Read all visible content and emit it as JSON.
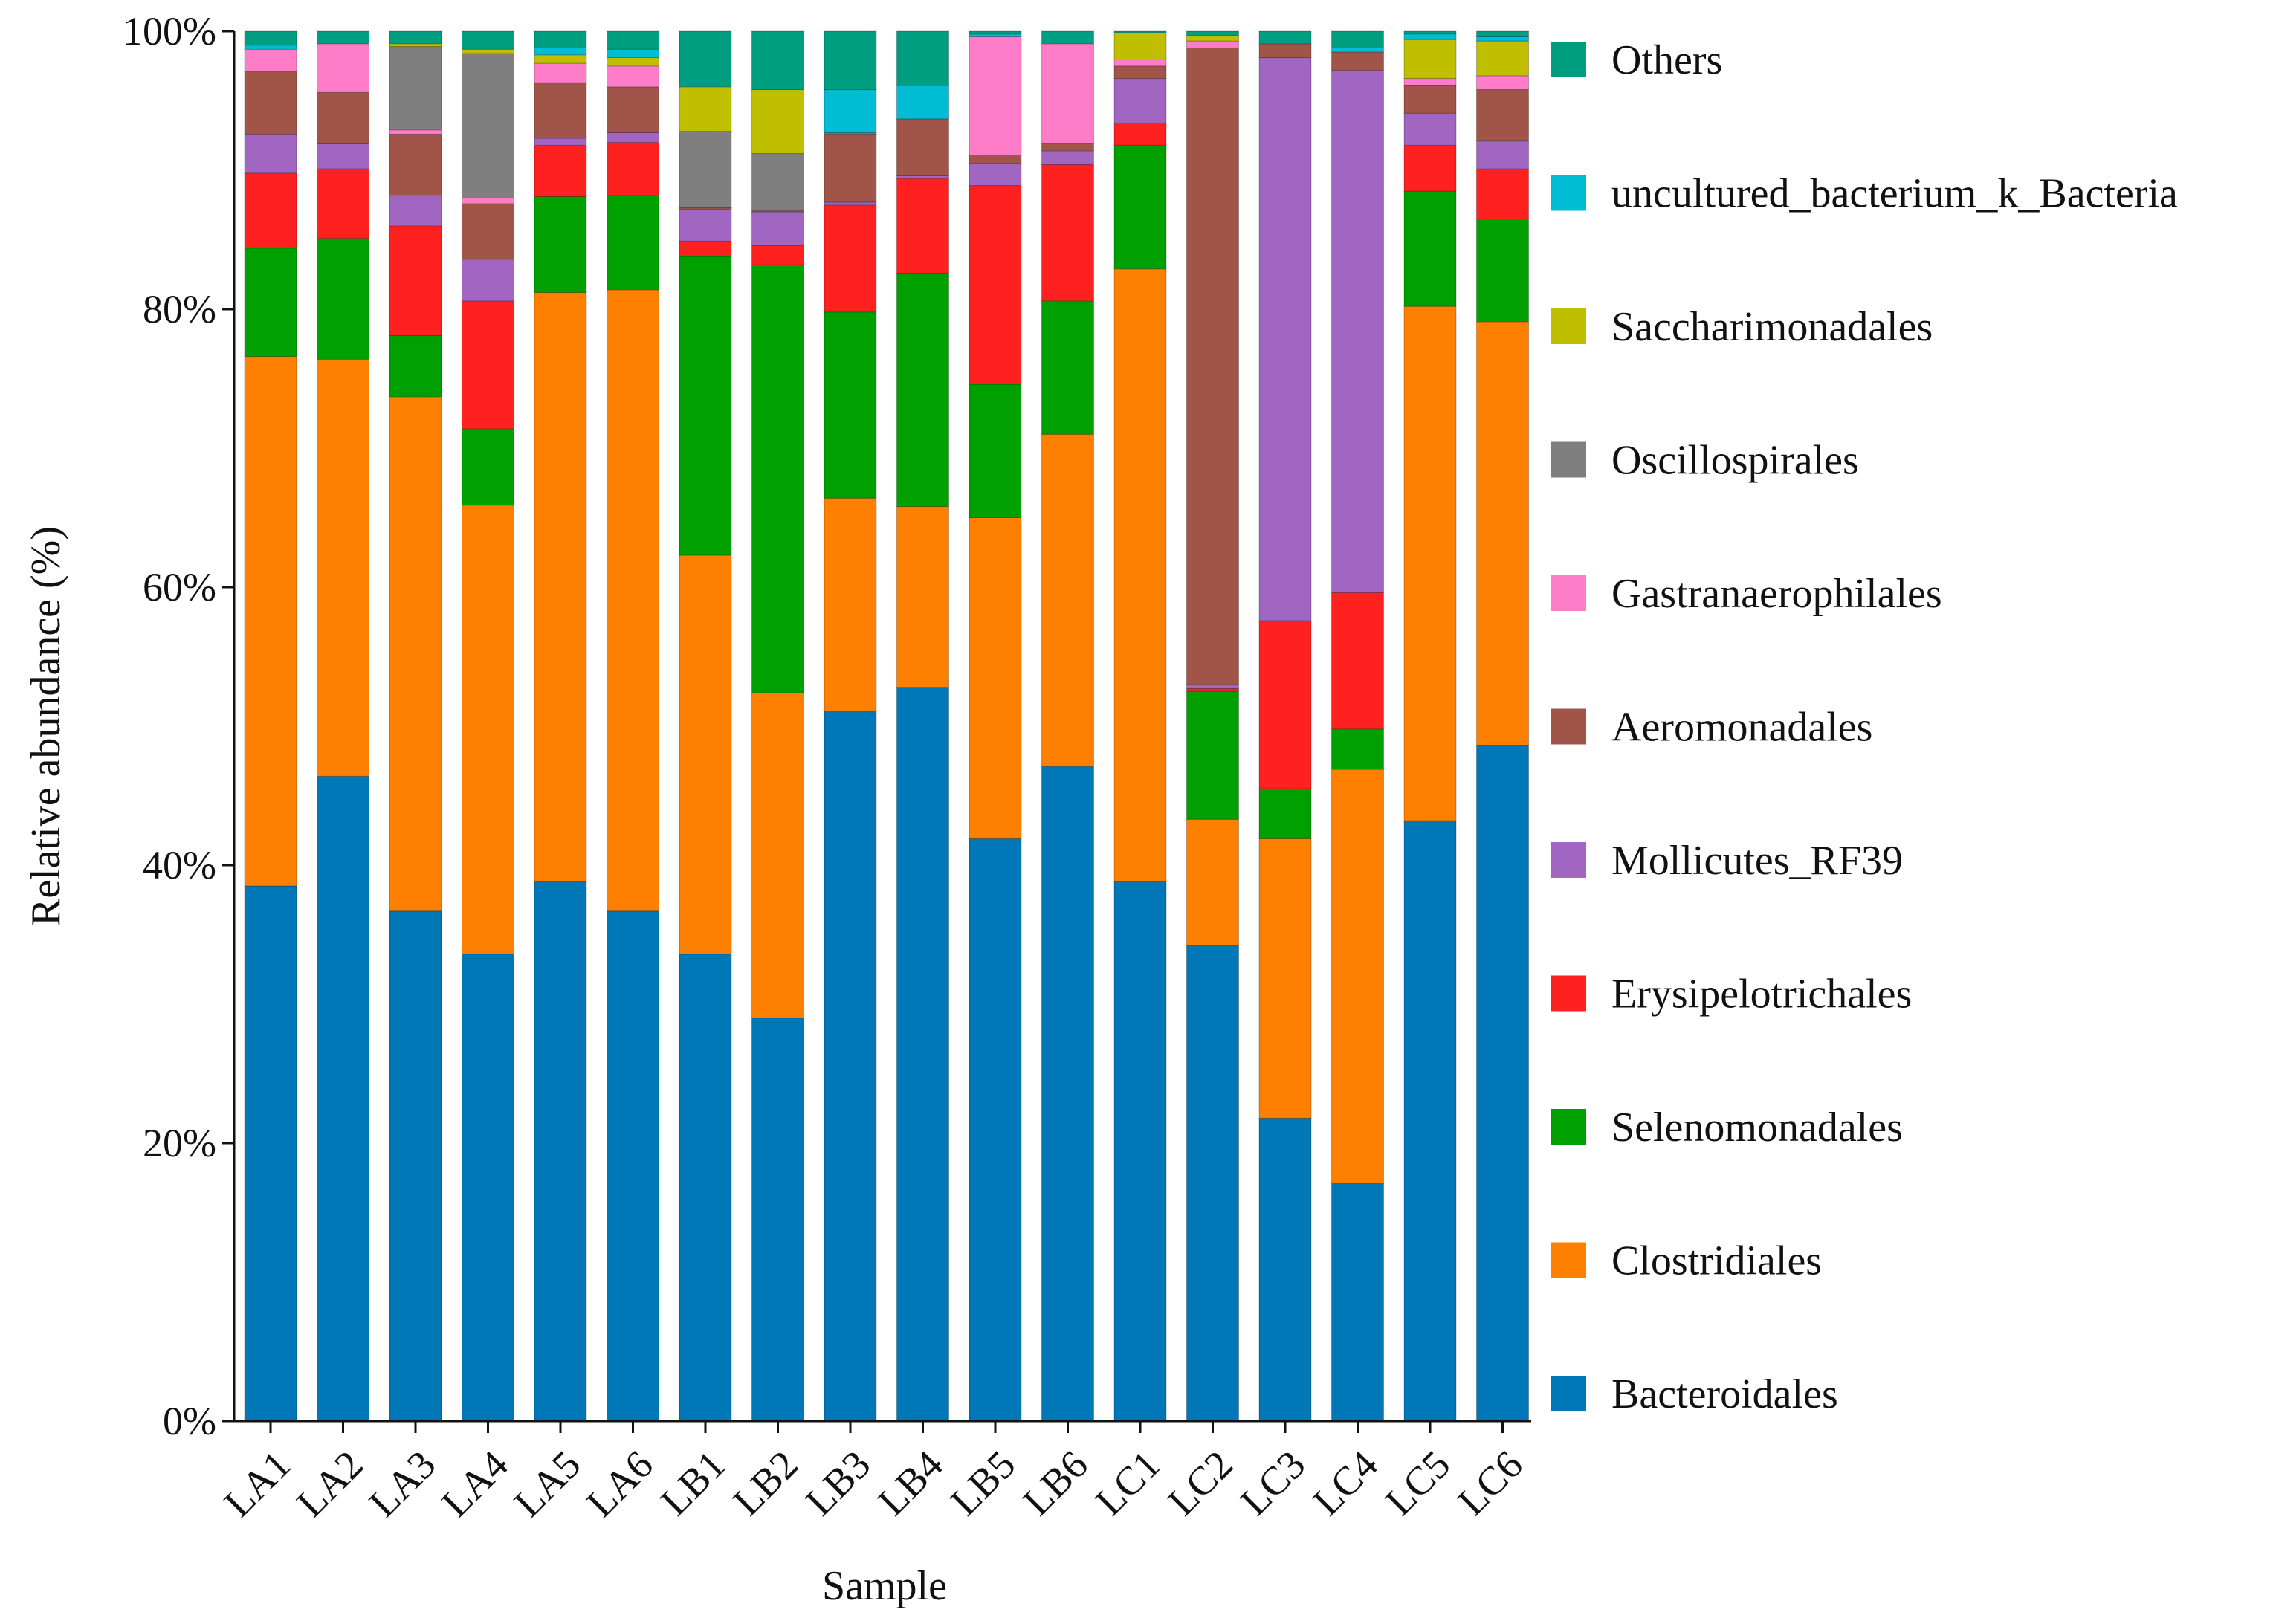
{
  "chart_data": {
    "type": "bar",
    "stacked": true,
    "percent": true,
    "title": "",
    "xlabel": "Sample",
    "ylabel": "Relative abundance (%)",
    "ylim": [
      0,
      100
    ],
    "yticks": [
      "0%",
      "20%",
      "40%",
      "60%",
      "80%",
      "100%"
    ],
    "legend_position": "right",
    "categories": [
      "LA1",
      "LA2",
      "LA3",
      "LA4",
      "LA5",
      "LA6",
      "LB1",
      "LB2",
      "LB3",
      "LB4",
      "LB5",
      "LB6",
      "LC1",
      "LC2",
      "LC3",
      "LC4",
      "LC5",
      "LC6"
    ],
    "series": [
      {
        "name": "Bacteroidales",
        "color": "#0077b6",
        "values": [
          38.5,
          46.4,
          36.7,
          33.6,
          38.8,
          36.7,
          33.6,
          29.0,
          51.1,
          52.8,
          41.9,
          47.1,
          38.8,
          34.2,
          21.8,
          17.1,
          43.2,
          48.6
        ]
      },
      {
        "name": "Clostridiales",
        "color": "#ff7f00",
        "values": [
          38.1,
          30.0,
          37.0,
          32.3,
          42.4,
          44.7,
          28.7,
          23.4,
          15.3,
          13.0,
          23.1,
          23.9,
          44.1,
          9.1,
          20.1,
          29.8,
          37.0,
          30.5
        ]
      },
      {
        "name": "Selenomonadales",
        "color": "#00a000",
        "values": [
          7.8,
          8.7,
          4.4,
          5.5,
          6.9,
          6.8,
          21.5,
          30.8,
          13.4,
          16.8,
          9.6,
          9.6,
          8.9,
          9.2,
          3.6,
          2.9,
          8.3,
          7.4
        ]
      },
      {
        "name": "Erysipelotrichales",
        "color": "#ff2020",
        "values": [
          5.4,
          5.0,
          7.9,
          9.2,
          3.7,
          3.8,
          1.1,
          1.4,
          7.7,
          6.8,
          14.3,
          9.8,
          1.6,
          0.2,
          12.1,
          9.8,
          3.3,
          3.6
        ]
      },
      {
        "name": "Mollicutes_RF39",
        "color": "#a066c2",
        "values": [
          2.8,
          1.8,
          2.2,
          3.0,
          0.5,
          0.7,
          2.3,
          2.4,
          0.2,
          0.2,
          1.6,
          1.0,
          3.2,
          0.3,
          40.5,
          37.6,
          2.3,
          2.0
        ]
      },
      {
        "name": "Aeromonadales",
        "color": "#a05548",
        "values": [
          4.5,
          3.7,
          4.4,
          4.0,
          4.0,
          3.3,
          0.1,
          0.1,
          4.9,
          4.1,
          0.6,
          0.5,
          0.9,
          45.8,
          1.0,
          1.3,
          2.0,
          3.7
        ]
      },
      {
        "name": "Gastranaerophilales",
        "color": "#ff7cc8",
        "values": [
          1.6,
          3.5,
          0.3,
          0.4,
          1.4,
          1.5,
          0.0,
          0.0,
          0.0,
          0.0,
          8.5,
          7.2,
          0.5,
          0.5,
          0.0,
          0.0,
          0.5,
          1.0
        ]
      },
      {
        "name": "Oscillospirales",
        "color": "#7f7f7f",
        "values": [
          0.0,
          0.0,
          6.0,
          10.4,
          0.0,
          0.0,
          5.5,
          4.1,
          0.1,
          0.0,
          0.0,
          0.0,
          0.0,
          0.0,
          0.0,
          0.0,
          0.0,
          0.0
        ]
      },
      {
        "name": "Saccharimonadales",
        "color": "#bfbf00",
        "values": [
          0.0,
          0.0,
          0.2,
          0.3,
          0.6,
          0.6,
          3.2,
          4.6,
          0.0,
          0.0,
          0.0,
          0.0,
          1.9,
          0.4,
          0.0,
          0.0,
          2.8,
          2.5
        ]
      },
      {
        "name": "uncultured_bacterium_k_Bacteria",
        "color": "#00bcd4",
        "values": [
          0.3,
          0.0,
          0.0,
          0.0,
          0.5,
          0.6,
          0.0,
          0.0,
          3.1,
          2.4,
          0.2,
          0.0,
          0.0,
          0.0,
          0.0,
          0.3,
          0.4,
          0.3
        ]
      },
      {
        "name": "Others",
        "color": "#009e80",
        "values": [
          1.0,
          0.9,
          0.9,
          1.3,
          1.2,
          1.3,
          4.0,
          4.2,
          4.2,
          3.9,
          0.2,
          0.9,
          0.1,
          0.3,
          0.9,
          1.2,
          0.2,
          0.4
        ]
      }
    ]
  }
}
